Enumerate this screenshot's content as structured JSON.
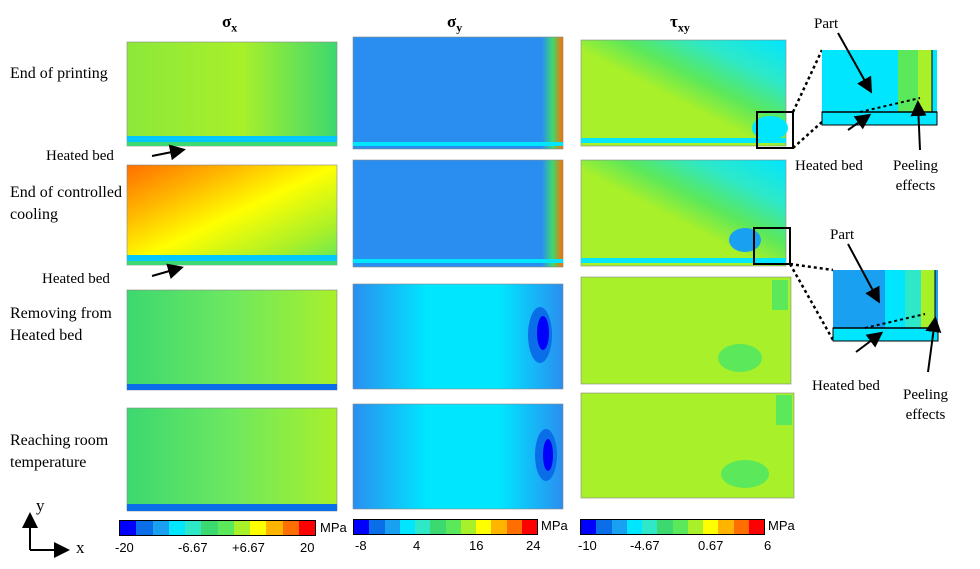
{
  "columns": [
    {
      "symbol": "σ",
      "sub": "x"
    },
    {
      "symbol": "σ",
      "sub": "y"
    },
    {
      "symbol": "τ",
      "sub": "xy"
    }
  ],
  "rows": [
    {
      "label": "End of printing",
      "bed_label": "Heated bed"
    },
    {
      "label": "End of controlled\ncooling",
      "bed_label": "Heated bed"
    },
    {
      "label": "Removing from\nHeated bed",
      "bed_label": ""
    },
    {
      "label": "Reaching room\ntemperature",
      "bed_label": ""
    }
  ],
  "zoom_callouts": [
    {
      "part": "Part",
      "bed": "Heated bed",
      "effect": "Peeling\neffects"
    },
    {
      "part": "Part",
      "bed": "Heated bed",
      "effect": "Peeling\neffects"
    }
  ],
  "colorbars": [
    {
      "unit": "MPa",
      "ticks": [
        "-20",
        "-6.67",
        "+6.67",
        "20"
      ]
    },
    {
      "unit": "MPa",
      "ticks": [
        "-8",
        "4",
        "16",
        "24"
      ]
    },
    {
      "unit": "MPa",
      "ticks": [
        "-10",
        "-4.67",
        "0.67",
        "6"
      ]
    }
  ],
  "axes": {
    "x": "x",
    "y": "y"
  },
  "colors": {
    "scale": [
      "#0000ff",
      "#0a6ee8",
      "#1aa0f0",
      "#00e6ff",
      "#2ee8c8",
      "#3cd870",
      "#5be85b",
      "#a8f02a",
      "#ffff00",
      "#ffb400",
      "#ff6e00",
      "#ff0000"
    ]
  }
}
